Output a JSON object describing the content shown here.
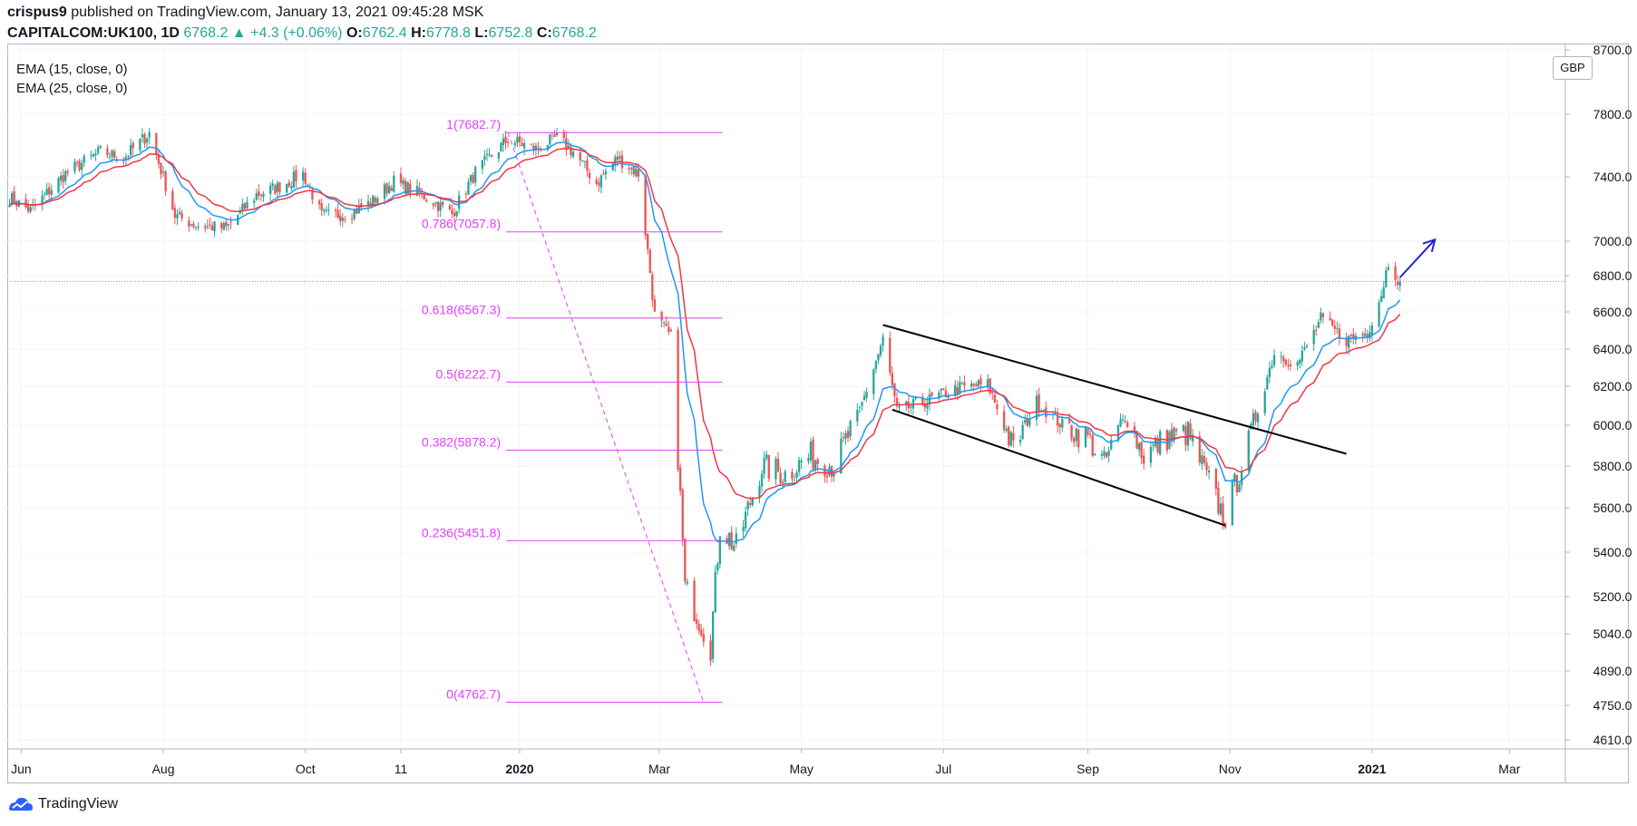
{
  "header": {
    "author": "crispus9",
    "published_text": " published on TradingView.com, January 13, 2021 09:45:28 MSK"
  },
  "ticker": {
    "symbol": "CAPITALCOM:UK100, 1D",
    "last": "6768.2",
    "arrow": "▲",
    "change": "+4.3 (+0.06%)",
    "o_label": "O:",
    "o_value": "6762.4",
    "h_label": "H:",
    "h_value": "6778.8",
    "l_label": "L:",
    "l_value": "6752.8",
    "c_label": "C:",
    "c_value": "6768.2"
  },
  "legend": {
    "ema1": "EMA (15, close, 0)",
    "ema2": "EMA (25, close, 0)"
  },
  "currency": "GBP",
  "brand": "TradingView",
  "colors": {
    "up": "#26a69a",
    "down": "#ef5350",
    "ema15": "#2196f3",
    "ema25": "#f23645",
    "fib": "#e040fb",
    "channel": "#000000",
    "arrow": "#1e22d6",
    "last_price_line": "#e57373"
  },
  "chart_data": {
    "type": "candlestick",
    "symbol": "CAPITALCOM:UK100",
    "interval": "1D",
    "currency": "GBP",
    "y_ticks": [
      "8700.0",
      "7800.0",
      "7400.0",
      "7000.0",
      "6800.0",
      "6600.0",
      "6400.0",
      "6200.0",
      "6000.0",
      "5800.0",
      "5600.0",
      "5400.0",
      "5200.0",
      "5040.0",
      "4890.0",
      "4750.0",
      "4610.0"
    ],
    "y_tick_values": [
      8700,
      7800,
      7400,
      7000,
      6800,
      6600,
      6400,
      6200,
      6000,
      5800,
      5600,
      5400,
      5200,
      5040,
      4890,
      4750,
      4610
    ],
    "x_tick_labels": [
      {
        "label": "Jun",
        "date": "2019-06-01",
        "bold": false
      },
      {
        "label": "Aug",
        "date": "2019-08-01",
        "bold": false
      },
      {
        "label": "Oct",
        "date": "2019-10-01",
        "bold": false
      },
      {
        "label": "11",
        "date": "2019-11-11",
        "bold": false
      },
      {
        "label": "2020",
        "date": "2020-01-01",
        "bold": true
      },
      {
        "label": "Mar",
        "date": "2020-03-01",
        "bold": false
      },
      {
        "label": "May",
        "date": "2020-05-01",
        "bold": false
      },
      {
        "label": "Jul",
        "date": "2020-07-01",
        "bold": false
      },
      {
        "label": "Sep",
        "date": "2020-09-01",
        "bold": false
      },
      {
        "label": "Nov",
        "date": "2020-11-01",
        "bold": false
      },
      {
        "label": "2021",
        "date": "2021-01-01",
        "bold": true
      },
      {
        "label": "Mar",
        "date": "2021-03-01",
        "bold": false
      }
    ],
    "x_range": [
      "2019-05-26",
      "2021-03-25"
    ],
    "last_price": 6768.2,
    "price_path": [
      [
        "2019-05-27",
        7270
      ],
      [
        "2019-06-05",
        7190
      ],
      [
        "2019-06-20",
        7420
      ],
      [
        "2019-07-05",
        7560
      ],
      [
        "2019-07-15",
        7520
      ],
      [
        "2019-07-26",
        7680
      ],
      [
        "2019-08-06",
        7160
      ],
      [
        "2019-08-15",
        7100
      ],
      [
        "2019-08-28",
        7080
      ],
      [
        "2019-09-10",
        7290
      ],
      [
        "2019-09-20",
        7340
      ],
      [
        "2019-09-30",
        7420
      ],
      [
        "2019-10-08",
        7160
      ],
      [
        "2019-10-20",
        7170
      ],
      [
        "2019-10-30",
        7250
      ],
      [
        "2019-11-08",
        7370
      ],
      [
        "2019-11-20",
        7290
      ],
      [
        "2019-12-03",
        7170
      ],
      [
        "2019-12-13",
        7430
      ],
      [
        "2019-12-27",
        7640
      ],
      [
        "2020-01-08",
        7580
      ],
      [
        "2020-01-17",
        7650
      ],
      [
        "2020-01-24",
        7560
      ],
      [
        "2020-02-03",
        7360
      ],
      [
        "2020-02-12",
        7520
      ],
      [
        "2020-02-21",
        7420
      ],
      [
        "2020-02-28",
        6580
      ],
      [
        "2020-03-06",
        6460
      ],
      [
        "2020-03-12",
        5240
      ],
      [
        "2020-03-16",
        5150
      ],
      [
        "2020-03-23",
        4990
      ],
      [
        "2020-03-27",
        5520
      ],
      [
        "2020-04-03",
        5420
      ],
      [
        "2020-04-14",
        5800
      ],
      [
        "2020-04-24",
        5760
      ],
      [
        "2020-05-05",
        5850
      ],
      [
        "2020-05-15",
        5800
      ],
      [
        "2020-05-26",
        6070
      ],
      [
        "2020-06-05",
        6450
      ],
      [
        "2020-06-11",
        6070
      ],
      [
        "2020-06-25",
        6130
      ],
      [
        "2020-07-07",
        6190
      ],
      [
        "2020-07-20",
        6210
      ],
      [
        "2020-07-31",
        5880
      ],
      [
        "2020-08-10",
        6120
      ],
      [
        "2020-08-21",
        6000
      ],
      [
        "2020-09-01",
        5940
      ],
      [
        "2020-09-08",
        5810
      ],
      [
        "2020-09-17",
        6050
      ],
      [
        "2020-09-25",
        5850
      ],
      [
        "2020-10-05",
        5940
      ],
      [
        "2020-10-14",
        5960
      ],
      [
        "2020-10-28",
        5590
      ],
      [
        "2020-10-30",
        5560
      ],
      [
        "2020-11-09",
        5910
      ],
      [
        "2020-11-20",
        6380
      ],
      [
        "2020-11-30",
        6320
      ],
      [
        "2020-12-10",
        6560
      ],
      [
        "2020-12-21",
        6450
      ],
      [
        "2020-12-30",
        6490
      ],
      [
        "2021-01-05",
        6700
      ],
      [
        "2021-01-08",
        6880
      ],
      [
        "2021-01-13",
        6768
      ]
    ],
    "fibonacci": {
      "from": {
        "date": "2019-12-27",
        "price": 7682.7
      },
      "to": {
        "date": "2020-03-20",
        "price": 4762.7
      },
      "levels": [
        {
          "label": "1(7682.7)",
          "price": 7682.7
        },
        {
          "label": "0.786(7057.8)",
          "price": 7057.8
        },
        {
          "label": "0.618(6567.3)",
          "price": 6567.3
        },
        {
          "label": "0.5(6222.7)",
          "price": 6222.7
        },
        {
          "label": "0.382(5878.2)",
          "price": 5878.2
        },
        {
          "label": "0.236(5451.8)",
          "price": 5451.8
        },
        {
          "label": "0(4762.7)",
          "price": 4762.7
        }
      ]
    },
    "channel": {
      "upper": [
        {
          "date": "2020-06-05",
          "price": 6530
        },
        {
          "date": "2020-12-21",
          "price": 5860
        }
      ],
      "lower": [
        {
          "date": "2020-06-09",
          "price": 6080
        },
        {
          "date": "2020-10-30",
          "price": 5520
        }
      ]
    },
    "arrow": {
      "from": {
        "date": "2021-01-13",
        "price": 6790
      },
      "to": {
        "date": "2021-01-28",
        "price": 7010
      }
    }
  }
}
